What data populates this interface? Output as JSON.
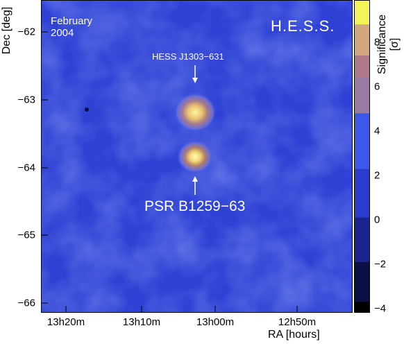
{
  "map": {
    "date_line1": "February",
    "date_line2": "2004",
    "brand": "H.E.S.S.",
    "source_upper": "HESS J1303−631",
    "source_lower": "PSR B1259−63"
  },
  "axes": {
    "y_label": "Dec [deg]",
    "x_label": "RA [hours]",
    "y_ticks": [
      "−62",
      "−63",
      "−64",
      "−65",
      "−66"
    ],
    "x_ticks": [
      "13h20m",
      "13h10m",
      "13h00m",
      "12h50m"
    ]
  },
  "colorbar": {
    "label": "Significance [σ]",
    "ticks": [
      "8",
      "6",
      "4",
      "2",
      "0",
      "−2",
      "−4"
    ],
    "range": [
      -4.3,
      9.8
    ],
    "bands": [
      {
        "from": 8.7,
        "to": 9.8,
        "color": "#f3f35a"
      },
      {
        "from": 7.3,
        "to": 8.7,
        "color": "#d2a880"
      },
      {
        "from": 6.3,
        "to": 7.3,
        "color": "#b07a8a"
      },
      {
        "from": 4.7,
        "to": 6.3,
        "color": "#9c7aa6"
      },
      {
        "from": 2.2,
        "to": 4.7,
        "color": "#3c58e8"
      },
      {
        "from": 0.0,
        "to": 2.2,
        "color": "#2a3ccc"
      },
      {
        "from": -2.0,
        "to": 0.0,
        "color": "#1a2490"
      },
      {
        "from": -3.8,
        "to": -2.0,
        "color": "#0c1048"
      },
      {
        "from": -4.3,
        "to": -3.8,
        "color": "#000000"
      }
    ]
  },
  "colors": {
    "map_background": "#2c3fd6",
    "source_hot": "#fff08a"
  }
}
